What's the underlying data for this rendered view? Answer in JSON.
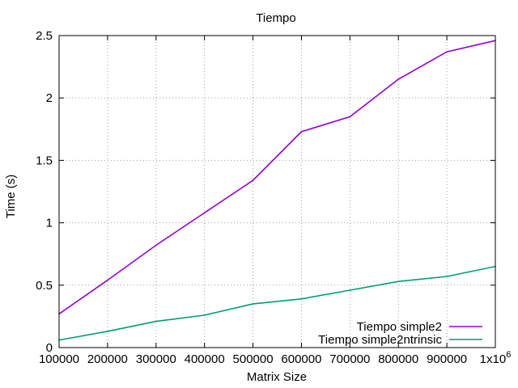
{
  "chart_data": {
    "type": "line",
    "title": "Tiempo",
    "xlabel": "Matrix Size",
    "ylabel": "Time (s)",
    "xlim": [
      100000,
      1000000
    ],
    "ylim": [
      0,
      2.5
    ],
    "xticks": [
      100000,
      200000,
      300000,
      400000,
      500000,
      600000,
      700000,
      800000,
      900000,
      1000000
    ],
    "xtick_labels": [
      "100000",
      "200000",
      "300000",
      "400000",
      "500000",
      "600000",
      "700000",
      "800000",
      "900000",
      "1x10"
    ],
    "xtick_last_exponent": "6",
    "yticks": [
      0,
      0.5,
      1,
      1.5,
      2,
      2.5
    ],
    "ytick_labels": [
      "0",
      "0.5",
      "1",
      "1.5",
      "2",
      "2.5"
    ],
    "grid": true,
    "legend_position": "bottom-right",
    "x": [
      100000,
      200000,
      300000,
      400000,
      500000,
      600000,
      700000,
      800000,
      900000,
      1000000
    ],
    "series": [
      {
        "name": "Tiempo simple2",
        "color": "#9400d3",
        "values": [
          0.27,
          0.54,
          0.82,
          1.08,
          1.34,
          1.73,
          1.85,
          2.15,
          2.37,
          2.46
        ]
      },
      {
        "name": "Tiempo simple2ntrinsic",
        "color": "#009e73",
        "values": [
          0.06,
          0.13,
          0.21,
          0.26,
          0.35,
          0.39,
          0.46,
          0.53,
          0.57,
          0.65
        ]
      }
    ]
  }
}
